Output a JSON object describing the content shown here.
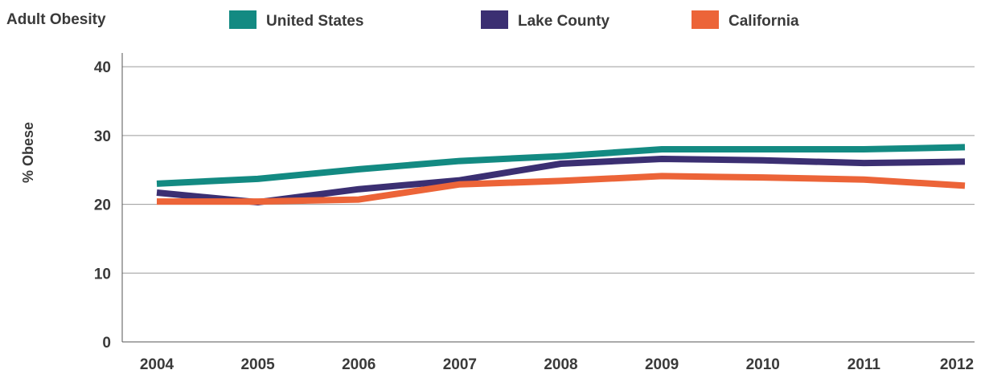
{
  "chart_data": {
    "type": "line",
    "title": "Adult Obesity",
    "xlabel": "",
    "ylabel": "% Obese",
    "categories": [
      "2004",
      "2005",
      "2006",
      "2007",
      "2008",
      "2009",
      "2010",
      "2011",
      "2012"
    ],
    "yticks": [
      "0",
      "10",
      "20",
      "30",
      "40"
    ],
    "ylim": [
      0,
      42
    ],
    "grid": true,
    "legend_position": "top",
    "series": [
      {
        "name": "United States",
        "color": "#138a82",
        "values": [
          23.0,
          23.7,
          25.1,
          26.3,
          27.0,
          28.0,
          28.0,
          28.0,
          28.3
        ]
      },
      {
        "name": "Lake County",
        "color": "#3b2f72",
        "values": [
          21.7,
          20.3,
          22.2,
          23.5,
          25.9,
          26.6,
          26.4,
          26.0,
          26.2
        ]
      },
      {
        "name": "California",
        "color": "#ec6438",
        "values": [
          20.4,
          20.4,
          20.7,
          22.9,
          23.4,
          24.1,
          23.9,
          23.6,
          22.7
        ]
      }
    ]
  }
}
